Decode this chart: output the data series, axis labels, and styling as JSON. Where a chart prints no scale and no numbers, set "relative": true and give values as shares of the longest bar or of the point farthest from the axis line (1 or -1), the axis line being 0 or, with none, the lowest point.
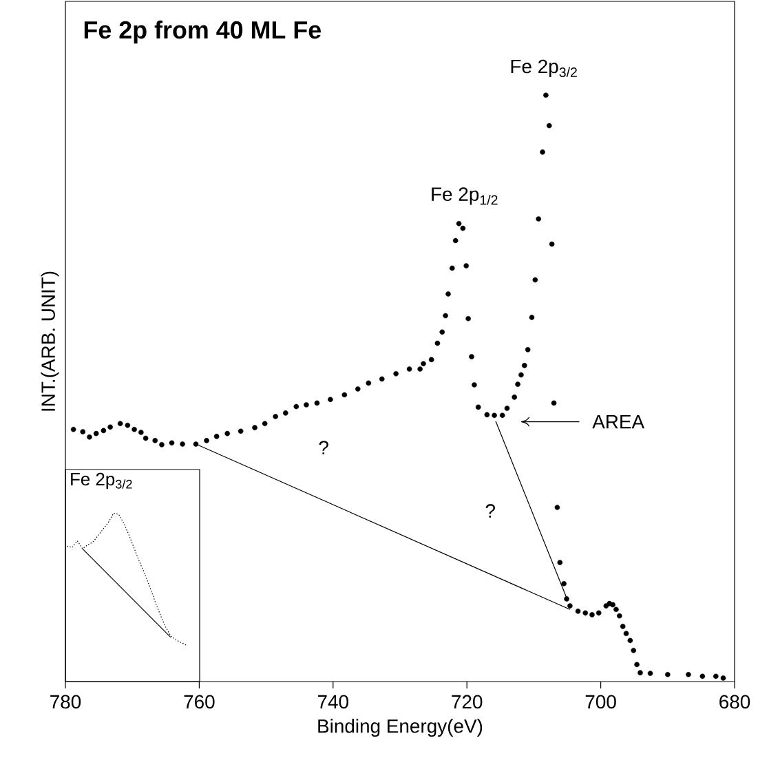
{
  "chart_data": [
    {
      "type": "scatter",
      "title": "Fe 2p from 40 ML Fe",
      "xlabel": "Binding Energy(eV)",
      "ylabel": "INT.(ARB. UNIT)",
      "relative": true,
      "xlim": [
        780,
        680
      ],
      "xticks": [
        780,
        760,
        740,
        720,
        700,
        680
      ],
      "grid": false,
      "series": [
        {
          "color": "#000000",
          "marker": "circle",
          "x": [
            778.8,
            777.4,
            776.4,
            775.4,
            774.3,
            773.3,
            771.8,
            770.7,
            769.7,
            768.7,
            768.0,
            766.6,
            765.6,
            764.1,
            762.5,
            760.5,
            758.9,
            757.4,
            755.8,
            753.8,
            751.7,
            750.2,
            748.6,
            747.1,
            745.5,
            744.0,
            742.4,
            740.4,
            738.3,
            736.3,
            734.7,
            732.7,
            730.6,
            728.6,
            727.0,
            726.5,
            725.3,
            724.4,
            723.7,
            723.2,
            722.8,
            722.2,
            721.7,
            721.2,
            720.6,
            720.1,
            719.8,
            719.3,
            718.9,
            718.3,
            717.0,
            715.9,
            714.7,
            714.0,
            712.9,
            712.4,
            711.9,
            711.4,
            710.9,
            710.3,
            709.8,
            709.3,
            708.7,
            708.2,
            707.7,
            707.3,
            707.0,
            706.5,
            706.1,
            705.5,
            705.1,
            704.6,
            703.4,
            702.3,
            701.3,
            700.3,
            699.2,
            698.7,
            698.2,
            697.7,
            697.2,
            696.7,
            696.2,
            695.6,
            695.1,
            694.6,
            694.1,
            692.6,
            690.0,
            686.9,
            684.8,
            682.8,
            681.7
          ],
          "values": [
            0.43,
            0.426,
            0.417,
            0.423,
            0.428,
            0.434,
            0.44,
            0.437,
            0.43,
            0.425,
            0.415,
            0.411,
            0.404,
            0.407,
            0.405,
            0.405,
            0.411,
            0.418,
            0.423,
            0.427,
            0.433,
            0.44,
            0.452,
            0.458,
            0.469,
            0.472,
            0.475,
            0.481,
            0.489,
            0.499,
            0.509,
            0.516,
            0.525,
            0.533,
            0.533,
            0.542,
            0.549,
            0.577,
            0.596,
            0.624,
            0.661,
            0.705,
            0.752,
            0.781,
            0.773,
            0.709,
            0.619,
            0.554,
            0.506,
            0.468,
            0.455,
            0.454,
            0.454,
            0.466,
            0.485,
            0.507,
            0.523,
            0.539,
            0.566,
            0.621,
            0.685,
            0.789,
            0.903,
            1.0,
            0.948,
            0.746,
            0.475,
            0.297,
            0.203,
            0.167,
            0.141,
            0.129,
            0.12,
            0.117,
            0.114,
            0.117,
            0.129,
            0.133,
            0.131,
            0.123,
            0.112,
            0.094,
            0.082,
            0.07,
            0.053,
            0.029,
            0.015,
            0.014,
            0.012,
            0.012,
            0.009,
            0.009,
            0.006
          ]
        },
        {
          "type": "line",
          "color": "#000000",
          "marker": "none",
          "x": [
            760.5,
            704.6
          ],
          "values": [
            0.405,
            0.123
          ]
        },
        {
          "type": "line",
          "color": "#000000",
          "marker": "none",
          "x": [
            715.7,
            704.9
          ],
          "values": [
            0.444,
            0.137
          ]
        }
      ],
      "annotations": [
        {
          "text": "Fe 2p$_{3/2}$",
          "x": 708.2,
          "y": 1.0
        },
        {
          "text": "Fe 2p$_{1/2}$",
          "x": 721.2,
          "y": 0.781
        },
        "AREA",
        "?",
        "?"
      ]
    },
    {
      "type": "scatter",
      "title": "Fe 2p$_{3/2}$",
      "relative": true,
      "grid": false,
      "categories": [
        null,
        null,
        null,
        null,
        null,
        null,
        null,
        null,
        null,
        null,
        null,
        null,
        null,
        null,
        null,
        null,
        null,
        null,
        null,
        null,
        null,
        null,
        null,
        null
      ],
      "series": [
        {
          "type": "line",
          "line_style": "dotted",
          "color": "#000000",
          "marker": "none",
          "values": [
            0.75,
            0.74,
            0.79,
            0.73,
            0.76,
            0.78,
            0.83,
            0.88,
            0.93,
            1.0,
            0.99,
            0.92,
            0.83,
            0.73,
            0.63,
            0.54,
            0.44,
            0.33,
            0.23,
            0.14,
            0.07,
            0.04,
            0.02,
            0.0
          ]
        },
        {
          "type": "line",
          "color": "#000000",
          "marker": "none",
          "values": [
            null,
            null,
            null,
            0.73,
            null,
            null,
            null,
            null,
            null,
            null,
            null,
            null,
            null,
            null,
            null,
            null,
            null,
            null,
            null,
            null,
            0.06,
            null,
            null,
            null
          ]
        }
      ]
    }
  ]
}
